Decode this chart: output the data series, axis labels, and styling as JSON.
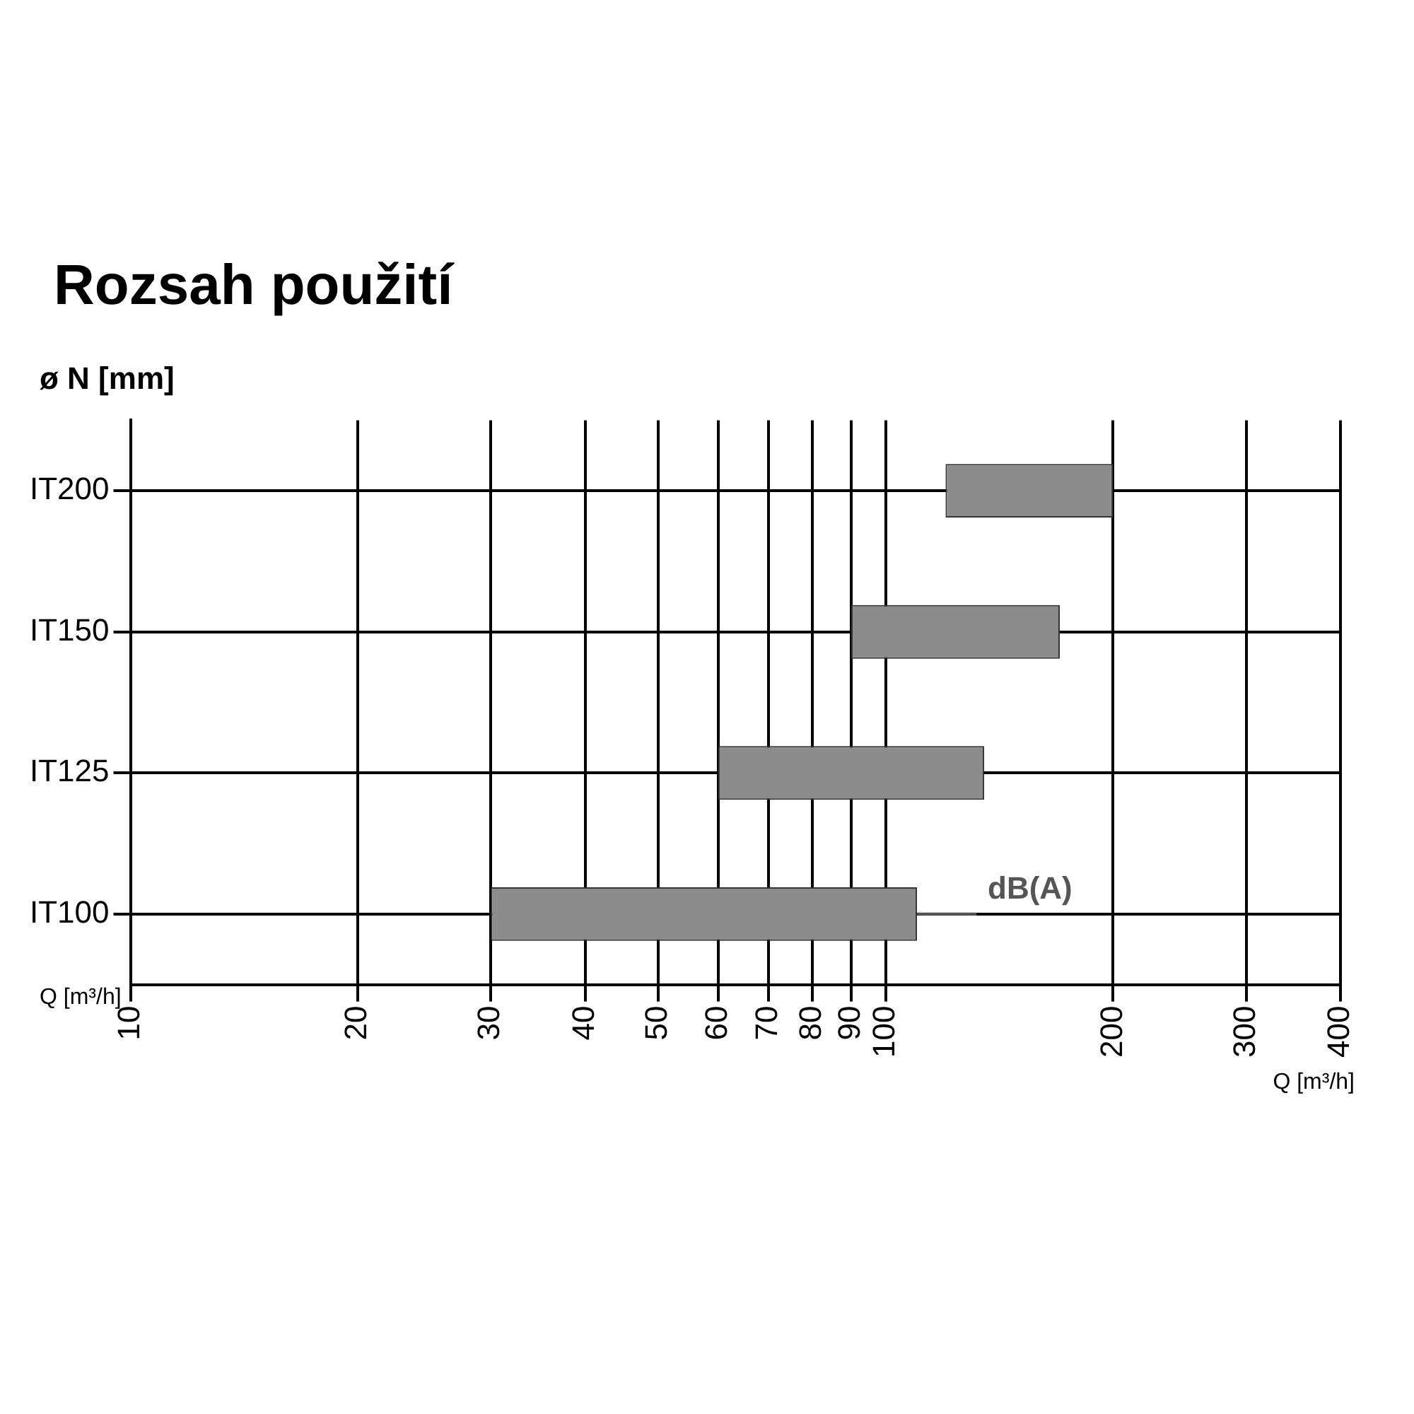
{
  "chart_data": {
    "type": "bar",
    "title": "Rozsah použití",
    "ylabel": "ø N [mm]",
    "xlabel": "Q [m³/h]",
    "orientation": "horizontal",
    "log": "x",
    "categories": [
      "IT200",
      "IT150",
      "IT125",
      "IT100"
    ],
    "base": [
      120,
      90,
      60,
      30
    ],
    "values": [
      80,
      80,
      75,
      80
    ],
    "color": "#8c8c8c",
    "xlim": [
      10,
      400
    ],
    "xticks": [
      10,
      20,
      30,
      40,
      50,
      60,
      70,
      80,
      90,
      100,
      200,
      300,
      400
    ],
    "grid": true,
    "annotations": [
      {
        "text": "dB(A)",
        "x": 110,
        "y": "IT100"
      }
    ]
  }
}
